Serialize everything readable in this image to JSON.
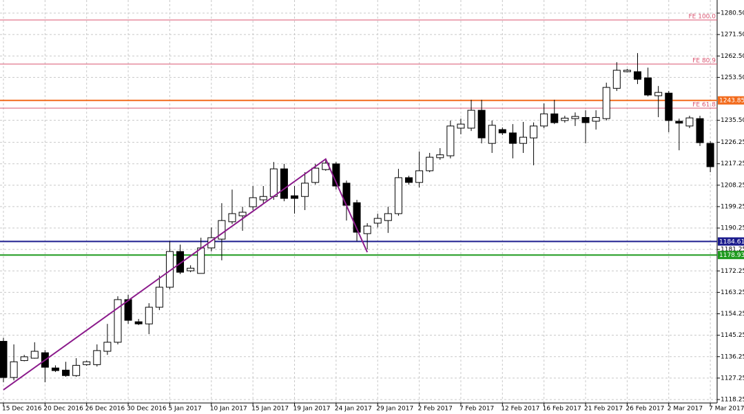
{
  "chart_data": {
    "type": "candlestick",
    "categories": [
      "15 Dec 2016",
      null,
      null,
      null,
      "20 Dec 2016",
      null,
      null,
      null,
      "26 Dec 2016",
      null,
      null,
      null,
      "30 Dec 2016",
      null,
      null,
      null,
      "5 Jan 2017",
      null,
      null,
      null,
      "10 Jan 2017",
      null,
      null,
      null,
      "15 Jan 2017",
      null,
      null,
      null,
      "19 Jan 2017",
      null,
      null,
      null,
      "24 Jan 2017",
      null,
      null,
      null,
      "29 Jan 2017",
      null,
      null,
      null,
      "2 Feb 2017",
      null,
      null,
      null,
      "7 Feb 2017",
      null,
      null,
      null,
      "12 Feb 2017",
      null,
      null,
      null,
      "16 Feb 2017",
      null,
      null,
      null,
      "21 Feb 2017",
      null,
      null,
      null,
      "26 Feb 2017",
      null,
      null,
      null,
      "2 Mar 2017",
      null,
      null,
      null,
      "7 Mar 2017"
    ],
    "open": [
      1142.7,
      1127.5,
      1134.6,
      1135.6,
      1137.9,
      1131.5,
      1130.6,
      1128.3,
      1132.9,
      1132.9,
      1138.5,
      1142.3,
      1160.2,
      1150.9,
      1150.0,
      1157.0,
      1165.4,
      1180.4,
      1172.3,
      1171.2,
      1181.9,
      1185.6,
      1192.9,
      1195.4,
      1199.2,
      1202.1,
      1203.5,
      1215.1,
      1203.8,
      1203.5,
      1209.4,
      1214.8,
      1217.2,
      1209.1,
      1200.9,
      1187.9,
      1192.3,
      1193.4,
      1196.3,
      1211.4,
      1209.4,
      1214.3,
      1219.8,
      1220.6,
      1232.2,
      1232.2,
      1239.7,
      1225.8,
      1231.6,
      1230.2,
      1225.8,
      1228.1,
      1233.1,
      1238.2,
      1235.4,
      1236.2,
      1236.7,
      1235.1,
      1236.2,
      1248.9,
      1255.9,
      1255.9,
      1253.3,
      1245.8,
      1246.9,
      1235.1,
      1233.1,
      1236.2,
      1225.8
    ],
    "high": [
      1144.2,
      1141.4,
      1137.0,
      1142.3,
      1139.0,
      1132.6,
      1134.1,
      1135.6,
      1134.6,
      1141.4,
      1150.0,
      1161.6,
      1162.2,
      1152.1,
      1158.7,
      1170.3,
      1184.7,
      1183.3,
      1174.6,
      1186.2,
      1190.5,
      1200.7,
      1206.4,
      1199.2,
      1207.9,
      1207.9,
      1218.0,
      1217.2,
      1207.9,
      1213.7,
      1217.2,
      1219.5,
      1218.0,
      1210.2,
      1202.1,
      1192.3,
      1196.3,
      1199.2,
      1215.1,
      1212.2,
      1222.4,
      1221.8,
      1223.8,
      1235.4,
      1236.2,
      1244.1,
      1244.1,
      1235.4,
      1232.5,
      1233.9,
      1234.8,
      1234.6,
      1242.6,
      1244.1,
      1237.4,
      1238.8,
      1239.7,
      1239.7,
      1251.3,
      1259.9,
      1257.1,
      1263.7,
      1257.6,
      1249.9,
      1247.8,
      1236.2,
      1237.4,
      1237.4,
      1226.7
    ],
    "low": [
      1125.5,
      1126.3,
      1134.3,
      1135.4,
      1125.5,
      1129.8,
      1127.8,
      1127.8,
      1132.4,
      1132.1,
      1137.0,
      1141.4,
      1150.0,
      1149.5,
      1145.7,
      1155.8,
      1164.5,
      1170.9,
      1171.7,
      1171.7,
      1180.4,
      1176.7,
      1191.9,
      1189.1,
      1197.8,
      1200.7,
      1202.1,
      1201.5,
      1196.3,
      1197.8,
      1208.5,
      1214.3,
      1206.4,
      1193.4,
      1184.7,
      1181.3,
      1190.5,
      1188.2,
      1195.4,
      1208.5,
      1207.3,
      1213.7,
      1218.9,
      1219.5,
      1229.6,
      1231.0,
      1225.8,
      1221.8,
      1229.3,
      1219.5,
      1221.8,
      1216.6,
      1232.2,
      1233.9,
      1234.5,
      1233.1,
      1225.8,
      1231.6,
      1235.4,
      1247.8,
      1255.6,
      1250.7,
      1245.5,
      1236.8,
      1230.5,
      1222.9,
      1232.2,
      1224.7,
      1213.7
    ],
    "close": [
      1127.5,
      1134.1,
      1136.2,
      1138.5,
      1131.8,
      1130.4,
      1128.3,
      1132.6,
      1134.1,
      1138.8,
      1142.3,
      1160.2,
      1151.5,
      1150.0,
      1157.0,
      1165.4,
      1180.4,
      1171.7,
      1173.4,
      1181.9,
      1186.2,
      1193.4,
      1196.3,
      1196.9,
      1203.0,
      1203.5,
      1215.1,
      1202.7,
      1202.7,
      1209.1,
      1215.4,
      1217.5,
      1207.9,
      1199.8,
      1188.5,
      1191.1,
      1194.3,
      1196.3,
      1211.4,
      1209.4,
      1214.3,
      1220.0,
      1221.0,
      1233.1,
      1233.9,
      1239.7,
      1228.1,
      1233.4,
      1230.2,
      1225.8,
      1228.4,
      1233.1,
      1238.2,
      1234.5,
      1236.4,
      1237.1,
      1234.5,
      1236.7,
      1249.3,
      1256.5,
      1256.5,
      1252.7,
      1246.1,
      1247.2,
      1235.4,
      1234.3,
      1236.5,
      1226.1,
      1216.0
    ],
    "ylim": [
      1116.8,
      1286.0
    ],
    "yticks": [
      {
        "value": 1280.5,
        "label": "1280.50"
      },
      {
        "value": 1271.5,
        "label": "1271.50"
      },
      {
        "value": 1262.5,
        "label": "1262.50"
      },
      {
        "value": 1253.5,
        "label": "1253.50"
      },
      {
        "value": 1235.5,
        "label": "1235.50"
      },
      {
        "value": 1226.25,
        "label": "1226.25"
      },
      {
        "value": 1217.25,
        "label": "1217.25"
      },
      {
        "value": 1208.25,
        "label": "1208.25"
      },
      {
        "value": 1199.25,
        "label": "1199.25"
      },
      {
        "value": 1190.25,
        "label": "1190.25"
      },
      {
        "value": 1181.25,
        "label": "1181.25"
      },
      {
        "value": 1172.25,
        "label": "1172.25"
      },
      {
        "value": 1163.25,
        "label": "1163.25"
      },
      {
        "value": 1154.25,
        "label": "1154.25"
      },
      {
        "value": 1145.25,
        "label": "1145.25"
      },
      {
        "value": 1136.25,
        "label": "1136.25"
      },
      {
        "value": 1127.25,
        "label": "1127.25"
      },
      {
        "value": 1118.25,
        "label": "1118.25"
      }
    ],
    "grid": true,
    "hlines": [
      {
        "label": "FE 100.0",
        "value": 1277.6,
        "color": "#d9536f"
      },
      {
        "label": "FE 80.9",
        "value": 1259.1,
        "color": "#d9536f"
      },
      {
        "label": "FE 61.8",
        "value": 1240.6,
        "color": "#d9536f"
      },
      {
        "value": 1243.85,
        "color": "#f26a1b"
      },
      {
        "value": 1184.61,
        "color": "#1a1a8c"
      },
      {
        "value": 1178.93,
        "color": "#1f9a1f"
      }
    ],
    "trendline": {
      "color": "#8b1a8b",
      "x": [
        0,
        31,
        35
      ],
      "values": [
        1122.3,
        1219.2,
        1180.1
      ]
    }
  }
}
